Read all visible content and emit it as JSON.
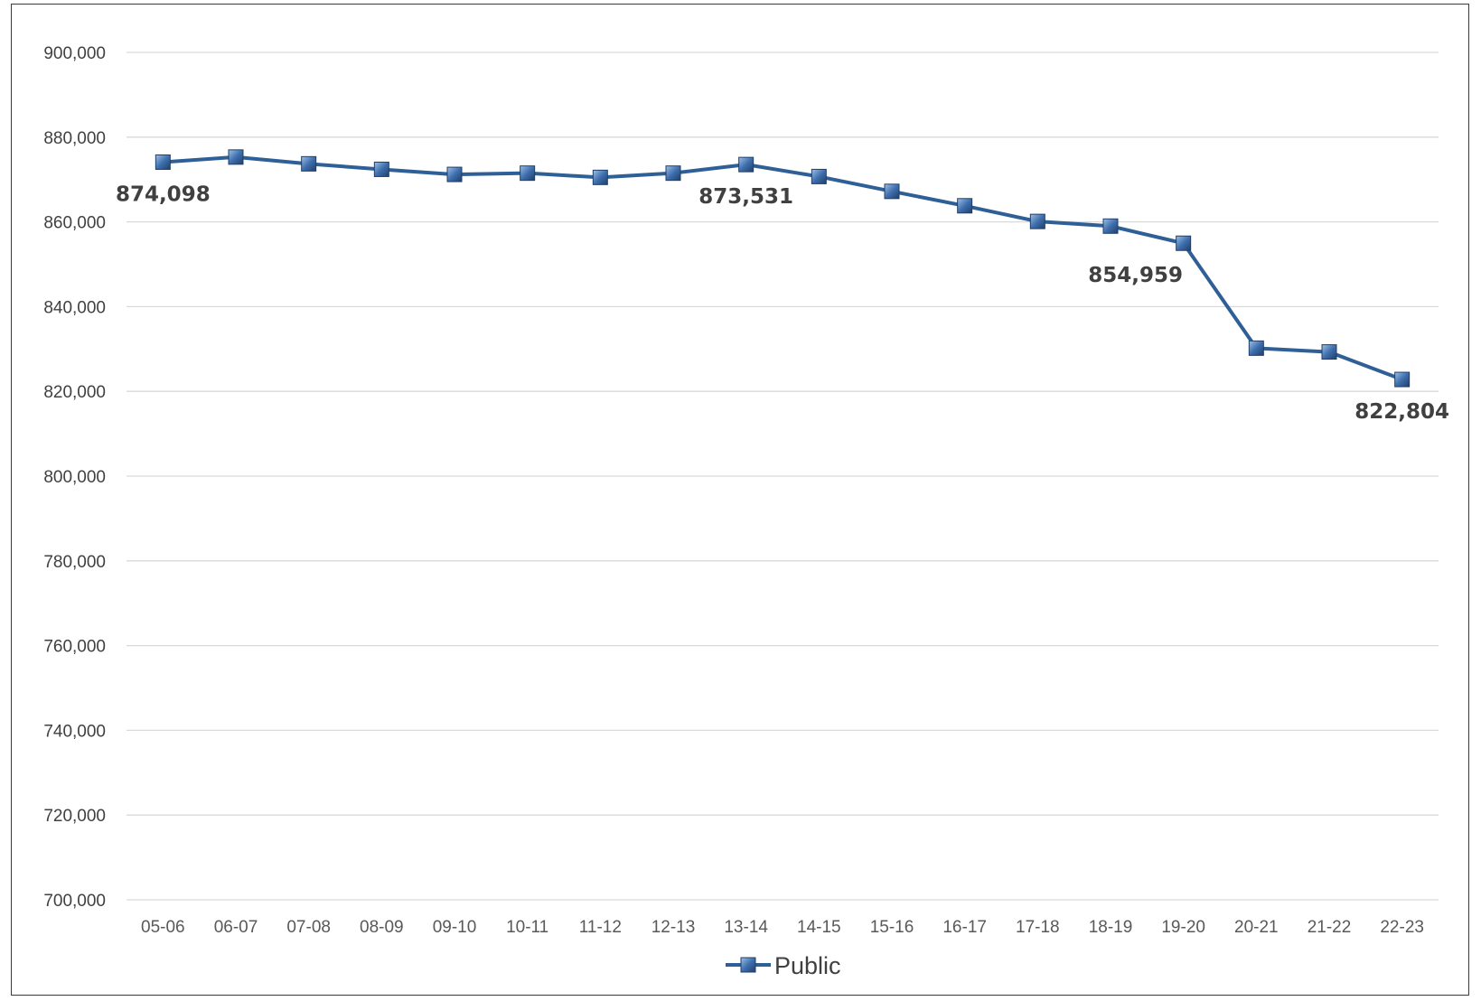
{
  "chart_data": {
    "type": "line",
    "title": "",
    "xlabel": "",
    "ylabel": "",
    "categories": [
      "05-06",
      "06-07",
      "07-08",
      "08-09",
      "09-10",
      "10-11",
      "11-12",
      "12-13",
      "13-14",
      "14-15",
      "15-16",
      "16-17",
      "17-18",
      "18-19",
      "19-20",
      "20-21",
      "21-22",
      "22-23"
    ],
    "series": [
      {
        "name": "Public",
        "color": "#2f5f97",
        "values": [
          874098,
          875300,
          873700,
          872400,
          871200,
          871500,
          870500,
          871500,
          873531,
          870700,
          867200,
          863800,
          860100,
          859000,
          854959,
          830200,
          829300,
          822804
        ]
      }
    ],
    "ylim": [
      700000,
      900000
    ],
    "y_ticks": [
      700000,
      720000,
      740000,
      760000,
      780000,
      800000,
      820000,
      840000,
      860000,
      880000,
      900000
    ],
    "y_tick_labels": [
      "700,000",
      "720,000",
      "740,000",
      "760,000",
      "780,000",
      "800,000",
      "820,000",
      "840,000",
      "860,000",
      "880,000",
      "900,000"
    ],
    "data_labels": [
      {
        "index": 0,
        "text": "874,098"
      },
      {
        "index": 8,
        "text": "873,531"
      },
      {
        "index": 14,
        "text": "854,959"
      },
      {
        "index": 17,
        "text": "822,804"
      }
    ],
    "grid": true,
    "legend_position": "bottom"
  }
}
